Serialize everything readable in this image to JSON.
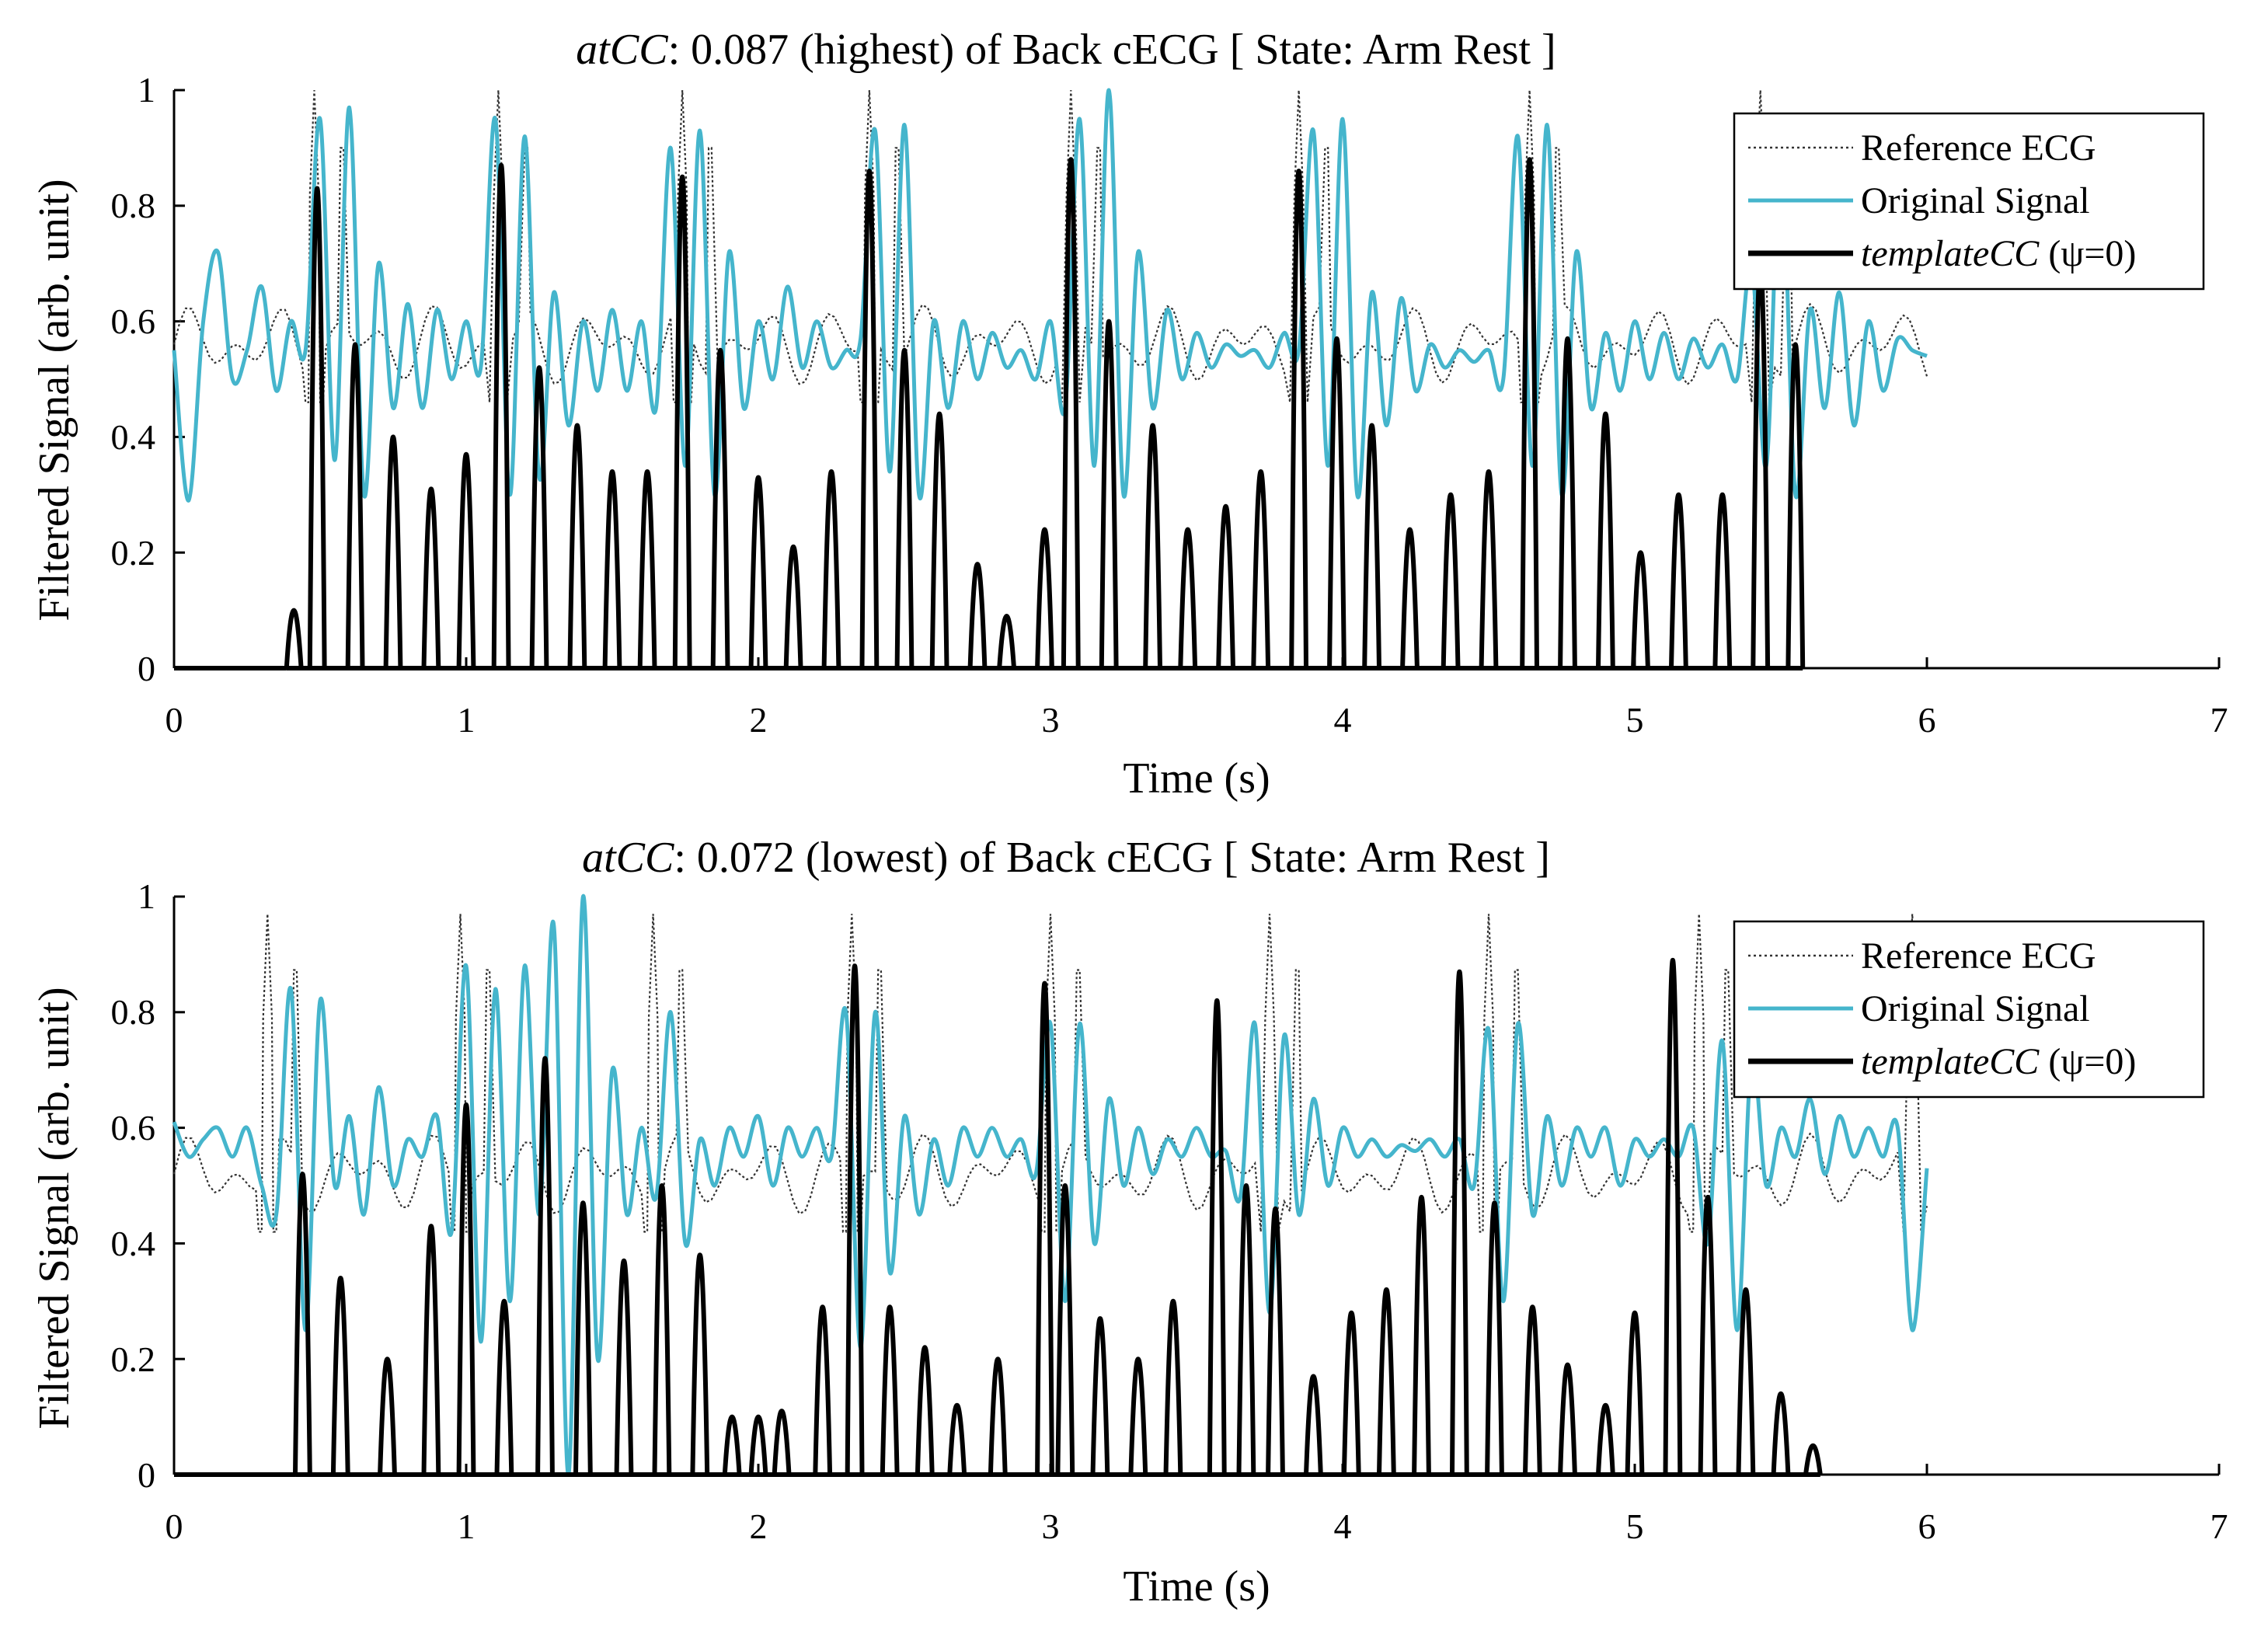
{
  "chart_data": [
    {
      "type": "line",
      "title": {
        "italic": "atCC",
        "rest": ": 0.087 (highest) of Back cECG [ State: Arm Rest ]"
      },
      "xlabel": "Time (s)",
      "ylabel": "Filtered Signal (arb. unit)",
      "xlim": [
        0,
        7
      ],
      "ylim": [
        0,
        1
      ],
      "xticks": [
        0,
        1,
        2,
        3,
        4,
        5,
        6,
        7
      ],
      "yticks": [
        0,
        0.2,
        0.4,
        0.6,
        0.8,
        1
      ],
      "ytick_labels": [
        "0",
        "0.2",
        "0.4",
        "0.6",
        "0.8",
        "1"
      ],
      "legend": {
        "position": "top-right",
        "entries": [
          {
            "label": "Reference ECG",
            "style": "dotted"
          },
          {
            "label": "Original Signal",
            "style": "solid-cyan"
          },
          {
            "italic": "templateCC",
            "rest": " (ψ=0)",
            "style": "solid-black"
          }
        ]
      },
      "colors": {
        "reference": "#333333",
        "original": "#45b5cc",
        "template": "#000000"
      },
      "reference_ecg": {
        "baseline": 0.56,
        "beats": [
          0.48,
          1.11,
          1.74,
          2.38,
          3.07,
          3.85,
          4.64,
          5.43
        ],
        "r_peak": 1.0
      },
      "original_signal": {
        "x": [
          0,
          0.05,
          0.1,
          0.15,
          0.2,
          0.25,
          0.3,
          0.35,
          0.4,
          0.45,
          0.5,
          0.55,
          0.6,
          0.65,
          0.7,
          0.75,
          0.8,
          0.85,
          0.9,
          0.95,
          1.0,
          1.05,
          1.1,
          1.15,
          1.2,
          1.25,
          1.3,
          1.35,
          1.4,
          1.45,
          1.5,
          1.55,
          1.6,
          1.65,
          1.7,
          1.75,
          1.8,
          1.85,
          1.9,
          1.95,
          2.0,
          2.05,
          2.1,
          2.15,
          2.2,
          2.25,
          2.3,
          2.35,
          2.4,
          2.45,
          2.5,
          2.55,
          2.6,
          2.65,
          2.7,
          2.75,
          2.8,
          2.85,
          2.9,
          2.95,
          3.0,
          3.05,
          3.1,
          3.15,
          3.2,
          3.25,
          3.3,
          3.35,
          3.4,
          3.45,
          3.5,
          3.55,
          3.6,
          3.65,
          3.7,
          3.75,
          3.8,
          3.85,
          3.9,
          3.95,
          4.0,
          4.05,
          4.1,
          4.15,
          4.2,
          4.25,
          4.3,
          4.35,
          4.4,
          4.45,
          4.5,
          4.55,
          4.6,
          4.65,
          4.7,
          4.75,
          4.8,
          4.85,
          4.9,
          4.95,
          5.0,
          5.05,
          5.1,
          5.15,
          5.2,
          5.25,
          5.3,
          5.35,
          5.4,
          5.45,
          5.5,
          5.55,
          5.6,
          5.65,
          5.7,
          5.75,
          5.8,
          5.85,
          5.9,
          5.95,
          6.0
        ],
        "y": [
          0.55,
          0.29,
          0.6,
          0.72,
          0.5,
          0.55,
          0.66,
          0.48,
          0.6,
          0.55,
          0.95,
          0.36,
          0.97,
          0.3,
          0.7,
          0.45,
          0.63,
          0.45,
          0.62,
          0.5,
          0.6,
          0.52,
          0.95,
          0.3,
          0.92,
          0.33,
          0.65,
          0.42,
          0.6,
          0.48,
          0.62,
          0.48,
          0.6,
          0.45,
          0.9,
          0.35,
          0.93,
          0.3,
          0.72,
          0.45,
          0.6,
          0.5,
          0.66,
          0.52,
          0.6,
          0.52,
          0.55,
          0.57,
          0.93,
          0.34,
          0.94,
          0.3,
          0.6,
          0.45,
          0.6,
          0.5,
          0.58,
          0.52,
          0.55,
          0.5,
          0.6,
          0.45,
          0.95,
          0.35,
          1.0,
          0.3,
          0.72,
          0.45,
          0.62,
          0.5,
          0.58,
          0.52,
          0.56,
          0.54,
          0.55,
          0.52,
          0.58,
          0.55,
          0.93,
          0.35,
          0.95,
          0.3,
          0.65,
          0.42,
          0.64,
          0.48,
          0.56,
          0.52,
          0.55,
          0.53,
          0.55,
          0.5,
          0.92,
          0.35,
          0.94,
          0.3,
          0.72,
          0.45,
          0.58,
          0.48,
          0.6,
          0.5,
          0.58,
          0.5,
          0.57,
          0.52,
          0.56,
          0.5,
          0.7,
          0.35,
          0.9,
          0.3,
          0.62,
          0.45,
          0.65,
          0.42,
          0.6,
          0.48,
          0.57,
          0.55,
          0.54
        ]
      },
      "template_cc": {
        "x": [
          0.41,
          0.49,
          0.62,
          0.75,
          0.88,
          1.0,
          1.12,
          1.25,
          1.38,
          1.5,
          1.62,
          1.74,
          1.87,
          2.0,
          2.12,
          2.25,
          2.38,
          2.5,
          2.62,
          2.75,
          2.85,
          2.98,
          3.07,
          3.2,
          3.35,
          3.47,
          3.6,
          3.72,
          3.85,
          3.98,
          4.1,
          4.23,
          4.37,
          4.5,
          4.64,
          4.77,
          4.9,
          5.02,
          5.15,
          5.3,
          5.43,
          5.55
        ],
        "peaks": [
          0.1,
          0.83,
          0.56,
          0.4,
          0.31,
          0.37,
          0.87,
          0.52,
          0.42,
          0.34,
          0.34,
          0.85,
          0.55,
          0.33,
          0.21,
          0.34,
          0.86,
          0.55,
          0.44,
          0.18,
          0.09,
          0.24,
          0.88,
          0.6,
          0.42,
          0.24,
          0.28,
          0.34,
          0.86,
          0.57,
          0.42,
          0.24,
          0.3,
          0.34,
          0.88,
          0.57,
          0.44,
          0.2,
          0.3,
          0.3,
          0.7,
          0.56
        ]
      }
    },
    {
      "type": "line",
      "title": {
        "italic": "atCC",
        "rest": ": 0.072 (lowest) of Back cECG [ State: Arm Rest ]"
      },
      "xlabel": "Time (s)",
      "ylabel": "Filtered Signal (arb. unit)",
      "xlim": [
        0,
        7
      ],
      "ylim": [
        0,
        1
      ],
      "xticks": [
        0,
        1,
        2,
        3,
        4,
        5,
        6,
        7
      ],
      "yticks": [
        0,
        0.2,
        0.4,
        0.6,
        0.8,
        1
      ],
      "ytick_labels": [
        "0",
        "0.2",
        "0.4",
        "0.6",
        "0.8",
        "1"
      ],
      "legend": {
        "position": "top-right",
        "entries": [
          {
            "label": "Reference ECG",
            "style": "dotted"
          },
          {
            "label": "Original Signal",
            "style": "solid-cyan"
          },
          {
            "italic": "templateCC",
            "rest": " (ψ=0)",
            "style": "solid-black"
          }
        ]
      },
      "colors": {
        "reference": "#333333",
        "original": "#45b5cc",
        "template": "#000000"
      },
      "reference_ecg": {
        "baseline": 0.52,
        "beats": [
          0.32,
          0.98,
          1.64,
          2.32,
          3.0,
          3.75,
          4.5,
          5.22,
          5.95
        ],
        "r_peak": 0.97
      },
      "original_signal": {
        "x": [
          0,
          0.05,
          0.1,
          0.15,
          0.2,
          0.25,
          0.3,
          0.35,
          0.4,
          0.45,
          0.5,
          0.55,
          0.6,
          0.65,
          0.7,
          0.75,
          0.8,
          0.85,
          0.9,
          0.95,
          1.0,
          1.05,
          1.1,
          1.15,
          1.2,
          1.25,
          1.3,
          1.35,
          1.4,
          1.45,
          1.5,
          1.55,
          1.6,
          1.65,
          1.7,
          1.75,
          1.8,
          1.85,
          1.9,
          1.95,
          2.0,
          2.05,
          2.1,
          2.15,
          2.2,
          2.25,
          2.3,
          2.35,
          2.4,
          2.45,
          2.5,
          2.55,
          2.6,
          2.65,
          2.7,
          2.75,
          2.8,
          2.85,
          2.9,
          2.95,
          3.0,
          3.05,
          3.1,
          3.15,
          3.2,
          3.25,
          3.3,
          3.35,
          3.4,
          3.45,
          3.5,
          3.55,
          3.6,
          3.65,
          3.7,
          3.75,
          3.8,
          3.85,
          3.9,
          3.95,
          4.0,
          4.05,
          4.1,
          4.15,
          4.2,
          4.25,
          4.3,
          4.35,
          4.4,
          4.45,
          4.5,
          4.55,
          4.6,
          4.65,
          4.7,
          4.75,
          4.8,
          4.85,
          4.9,
          4.95,
          5.0,
          5.05,
          5.1,
          5.15,
          5.2,
          5.25,
          5.3,
          5.35,
          5.4,
          5.45,
          5.5,
          5.55,
          5.6,
          5.65,
          5.7,
          5.75,
          5.8,
          5.85,
          5.9,
          5.95,
          6.0
        ],
        "y": [
          0.61,
          0.55,
          0.58,
          0.6,
          0.55,
          0.6,
          0.5,
          0.45,
          0.84,
          0.25,
          0.82,
          0.5,
          0.62,
          0.45,
          0.67,
          0.5,
          0.58,
          0.55,
          0.62,
          0.42,
          0.88,
          0.23,
          0.84,
          0.3,
          0.88,
          0.45,
          0.95,
          0.0,
          1.0,
          0.2,
          0.7,
          0.45,
          0.6,
          0.48,
          0.8,
          0.4,
          0.58,
          0.5,
          0.6,
          0.55,
          0.62,
          0.5,
          0.6,
          0.55,
          0.6,
          0.55,
          0.8,
          0.22,
          0.8,
          0.35,
          0.62,
          0.45,
          0.58,
          0.5,
          0.6,
          0.55,
          0.6,
          0.55,
          0.58,
          0.52,
          0.78,
          0.3,
          0.78,
          0.4,
          0.65,
          0.5,
          0.6,
          0.52,
          0.58,
          0.55,
          0.6,
          0.55,
          0.56,
          0.48,
          0.78,
          0.28,
          0.76,
          0.45,
          0.65,
          0.5,
          0.6,
          0.55,
          0.58,
          0.55,
          0.57,
          0.56,
          0.58,
          0.55,
          0.58,
          0.5,
          0.77,
          0.3,
          0.78,
          0.45,
          0.62,
          0.5,
          0.6,
          0.55,
          0.6,
          0.5,
          0.58,
          0.55,
          0.58,
          0.55,
          0.6,
          0.4,
          0.75,
          0.25,
          0.72,
          0.5,
          0.6,
          0.55,
          0.65,
          0.52,
          0.62,
          0.55,
          0.6,
          0.55,
          0.6,
          0.25,
          0.53
        ]
      },
      "template_cc": {
        "x": [
          0.44,
          0.57,
          0.73,
          0.88,
          1.0,
          1.13,
          1.27,
          1.4,
          1.54,
          1.67,
          1.8,
          1.91,
          2.0,
          2.08,
          2.22,
          2.33,
          2.45,
          2.57,
          2.68,
          2.82,
          2.98,
          3.05,
          3.17,
          3.3,
          3.42,
          3.57,
          3.67,
          3.77,
          3.9,
          4.03,
          4.15,
          4.27,
          4.4,
          4.52,
          4.65,
          4.77,
          4.9,
          5.0,
          5.13,
          5.25,
          5.38,
          5.5,
          5.61
        ],
        "peaks": [
          0.52,
          0.34,
          0.2,
          0.43,
          0.64,
          0.3,
          0.72,
          0.47,
          0.37,
          0.5,
          0.38,
          0.1,
          0.1,
          0.11,
          0.29,
          0.88,
          0.29,
          0.22,
          0.12,
          0.2,
          0.85,
          0.5,
          0.27,
          0.2,
          0.3,
          0.82,
          0.5,
          0.46,
          0.17,
          0.28,
          0.32,
          0.48,
          0.87,
          0.47,
          0.29,
          0.19,
          0.12,
          0.28,
          0.89,
          0.48,
          0.32,
          0.14,
          0.05
        ]
      }
    }
  ]
}
